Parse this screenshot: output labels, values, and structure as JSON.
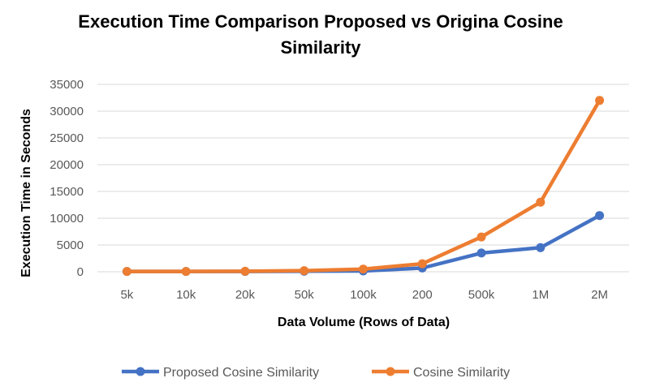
{
  "chart_data": {
    "type": "line",
    "title_line1": "Execution Time Comparison Proposed vs Origina Cosine",
    "title_line2": "Similarity",
    "xlabel": "Data Volume (Rows of Data)",
    "ylabel": "Execution Time in Seconds",
    "categories": [
      "5k",
      "10k",
      "20k",
      "50k",
      "100k",
      "200",
      "500k",
      "1M",
      "2M"
    ],
    "ylim": [
      0,
      35000
    ],
    "yticks": [
      0,
      5000,
      10000,
      15000,
      20000,
      25000,
      30000,
      35000
    ],
    "grid": true,
    "legend_position": "bottom",
    "series": [
      {
        "name": "Proposed Cosine Similarity",
        "color": "#4472c4",
        "values": [
          50,
          50,
          50,
          100,
          150,
          700,
          3500,
          4500,
          10500
        ]
      },
      {
        "name": "Cosine Similarity",
        "color": "#ed7d31",
        "values": [
          50,
          50,
          100,
          200,
          500,
          1500,
          6500,
          13000,
          32000
        ]
      }
    ]
  }
}
